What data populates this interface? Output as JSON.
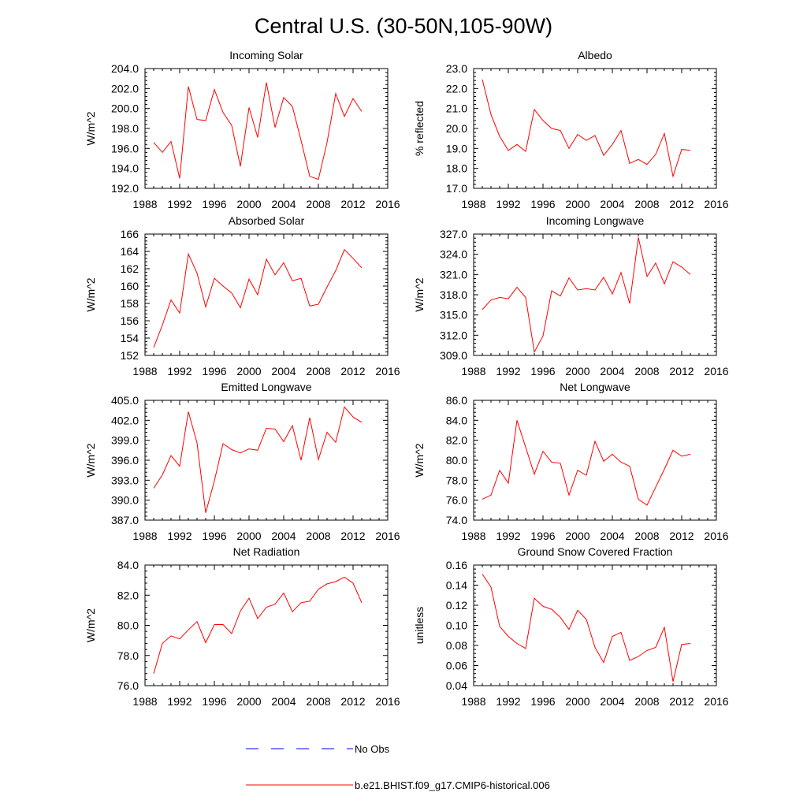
{
  "title": "Central U.S. (30-50N,105-90W)",
  "colors": {
    "model": "#ff0000",
    "obs": "#0000ff",
    "axis": "#000000"
  },
  "legend": {
    "obs_label": "No Obs",
    "model_label": "b.e21.BHIST.f09_g17.CMIP6-historical.006"
  },
  "chart_data": [
    {
      "type": "line",
      "title": "Incoming Solar",
      "ylabel": "W/m^2",
      "xlim": [
        1988,
        2016
      ],
      "xticks": [
        "1988",
        "1992",
        "1996",
        "2000",
        "2004",
        "2008",
        "2012",
        "2016"
      ],
      "ylim": [
        192,
        204
      ],
      "yticks": [
        "192.0",
        "194.0",
        "196.0",
        "198.0",
        "200.0",
        "202.0",
        "204.0"
      ],
      "x": [
        1989,
        1990,
        1991,
        1992,
        1993,
        1994,
        1995,
        1996,
        1997,
        1998,
        1999,
        2000,
        2001,
        2002,
        2003,
        2004,
        2005,
        2006,
        2007,
        2008,
        2009,
        2010,
        2011,
        2012,
        2013
      ],
      "series": [
        {
          "name": "b.e21.BHIST.f09_g17.CMIP6-historical.006",
          "values": [
            196.6,
            195.6,
            196.7,
            193.0,
            202.2,
            198.9,
            198.8,
            201.9,
            199.6,
            198.3,
            194.2,
            200.1,
            197.1,
            202.6,
            198.1,
            201.1,
            200.2,
            196.8,
            193.2,
            192.9,
            196.6,
            201.5,
            199.2,
            201.0,
            199.7
          ]
        }
      ]
    },
    {
      "type": "line",
      "title": "Albedo",
      "ylabel": "% reflected",
      "xlim": [
        1988,
        2016
      ],
      "xticks": [
        "1988",
        "1992",
        "1996",
        "2000",
        "2004",
        "2008",
        "2012",
        "2016"
      ],
      "ylim": [
        17,
        23
      ],
      "yticks": [
        "17.0",
        "18.0",
        "19.0",
        "20.0",
        "21.0",
        "22.0",
        "23.0"
      ],
      "x": [
        1989,
        1990,
        1991,
        1992,
        1993,
        1994,
        1995,
        1996,
        1997,
        1998,
        1999,
        2000,
        2001,
        2002,
        2003,
        2004,
        2005,
        2006,
        2007,
        2008,
        2009,
        2010,
        2011,
        2012,
        2013
      ],
      "series": [
        {
          "name": "b.e21.BHIST.f09_g17.CMIP6-historical.006",
          "values": [
            22.45,
            20.7,
            19.6,
            18.9,
            19.2,
            18.85,
            20.95,
            20.4,
            20.0,
            19.9,
            19.0,
            19.7,
            19.4,
            19.65,
            18.65,
            19.2,
            19.9,
            18.25,
            18.45,
            18.2,
            18.7,
            19.75,
            17.6,
            18.95,
            18.9
          ]
        }
      ]
    },
    {
      "type": "line",
      "title": "Absorbed Solar",
      "ylabel": "W/m^2",
      "xlim": [
        1988,
        2016
      ],
      "xticks": [
        "1988",
        "1992",
        "1996",
        "2000",
        "2004",
        "2008",
        "2012",
        "2016"
      ],
      "ylim": [
        152,
        166
      ],
      "yticks": [
        "152",
        "154",
        "156",
        "158",
        "160",
        "162",
        "164",
        "166"
      ],
      "x": [
        1989,
        1990,
        1991,
        1992,
        1993,
        1994,
        1995,
        1996,
        1997,
        1998,
        1999,
        2000,
        2001,
        2002,
        2003,
        2004,
        2005,
        2006,
        2007,
        2008,
        2009,
        2010,
        2011,
        2012,
        2013
      ],
      "series": [
        {
          "name": "b.e21.BHIST.f09_g17.CMIP6-historical.006",
          "values": [
            152.9,
            155.5,
            158.4,
            156.9,
            163.7,
            161.5,
            157.6,
            160.9,
            160.0,
            159.2,
            157.5,
            160.8,
            159.0,
            163.1,
            161.3,
            162.7,
            160.6,
            160.9,
            157.7,
            157.9,
            159.9,
            161.8,
            164.2,
            163.2,
            162.1
          ]
        }
      ]
    },
    {
      "type": "line",
      "title": "Incoming Longwave",
      "ylabel": "W/m^2",
      "xlim": [
        1988,
        2016
      ],
      "xticks": [
        "1988",
        "1992",
        "1996",
        "2000",
        "2004",
        "2008",
        "2012",
        "2016"
      ],
      "ylim": [
        309,
        327
      ],
      "yticks": [
        "309.0",
        "312.0",
        "315.0",
        "318.0",
        "321.0",
        "324.0",
        "327.0"
      ],
      "x": [
        1989,
        1990,
        1991,
        1992,
        1993,
        1994,
        1995,
        1996,
        1997,
        1998,
        1999,
        2000,
        2001,
        2002,
        2003,
        2004,
        2005,
        2006,
        2007,
        2008,
        2009,
        2010,
        2011,
        2012,
        2013
      ],
      "series": [
        {
          "name": "b.e21.BHIST.f09_g17.CMIP6-historical.006",
          "values": [
            315.8,
            317.2,
            317.6,
            317.4,
            319.1,
            317.6,
            309.5,
            311.9,
            318.6,
            317.8,
            320.5,
            318.7,
            318.9,
            318.7,
            320.6,
            318.1,
            321.3,
            316.7,
            326.5,
            320.7,
            322.7,
            319.6,
            322.9,
            322.1,
            321.0
          ]
        }
      ]
    },
    {
      "type": "line",
      "title": "Emitted Longwave",
      "ylabel": "W/m^2",
      "xlim": [
        1988,
        2016
      ],
      "xticks": [
        "1988",
        "1992",
        "1996",
        "2000",
        "2004",
        "2008",
        "2012",
        "2016"
      ],
      "ylim": [
        387,
        405
      ],
      "yticks": [
        "387.0",
        "390.0",
        "393.0",
        "396.0",
        "399.0",
        "402.0",
        "405.0"
      ],
      "x": [
        1989,
        1990,
        1991,
        1992,
        1993,
        1994,
        1995,
        1996,
        1997,
        1998,
        1999,
        2000,
        2001,
        2002,
        2003,
        2004,
        2005,
        2006,
        2007,
        2008,
        2009,
        2010,
        2011,
        2012,
        2013
      ],
      "series": [
        {
          "name": "b.e21.BHIST.f09_g17.CMIP6-historical.006",
          "values": [
            391.8,
            393.8,
            396.7,
            395.1,
            403.3,
            398.6,
            388.1,
            392.9,
            398.5,
            397.6,
            397.1,
            397.7,
            397.5,
            400.8,
            400.7,
            398.8,
            401.2,
            396.0,
            402.4,
            396.1,
            400.2,
            398.7,
            404.0,
            402.5,
            401.7
          ]
        }
      ]
    },
    {
      "type": "line",
      "title": "Net Longwave",
      "ylabel": "W/m^2",
      "xlim": [
        1988,
        2016
      ],
      "xticks": [
        "1988",
        "1992",
        "1996",
        "2000",
        "2004",
        "2008",
        "2012",
        "2016"
      ],
      "ylim": [
        74,
        86
      ],
      "yticks": [
        "74.0",
        "76.0",
        "78.0",
        "80.0",
        "82.0",
        "84.0",
        "86.0"
      ],
      "x": [
        1989,
        1990,
        1991,
        1992,
        1993,
        1994,
        1995,
        1996,
        1997,
        1998,
        1999,
        2000,
        2001,
        2002,
        2003,
        2004,
        2005,
        2006,
        2007,
        2008,
        2009,
        2010,
        2011,
        2012,
        2013
      ],
      "series": [
        {
          "name": "b.e21.BHIST.f09_g17.CMIP6-historical.006",
          "values": [
            76.1,
            76.5,
            79.0,
            77.7,
            84.0,
            81.3,
            78.6,
            80.9,
            79.8,
            79.7,
            76.5,
            79.0,
            78.5,
            81.9,
            79.9,
            80.6,
            79.8,
            79.4,
            76.1,
            75.5,
            77.3,
            79.1,
            81.0,
            80.4,
            80.6
          ]
        }
      ]
    },
    {
      "type": "line",
      "title": "Net Radiation",
      "ylabel": "W/m^2",
      "xlim": [
        1988,
        2016
      ],
      "xticks": [
        "1988",
        "1992",
        "1996",
        "2000",
        "2004",
        "2008",
        "2012",
        "2016"
      ],
      "ylim": [
        76,
        84
      ],
      "yticks": [
        "76.0",
        "78.0",
        "80.0",
        "82.0",
        "84.0"
      ],
      "x": [
        1989,
        1990,
        1991,
        1992,
        1993,
        1994,
        1995,
        1996,
        1997,
        1998,
        1999,
        2000,
        2001,
        2002,
        2003,
        2004,
        2005,
        2006,
        2007,
        2008,
        2009,
        2010,
        2011,
        2012,
        2013
      ],
      "series": [
        {
          "name": "b.e21.BHIST.f09_g17.CMIP6-historical.006",
          "values": [
            76.8,
            78.8,
            79.3,
            79.1,
            79.7,
            80.25,
            78.85,
            80.05,
            80.05,
            79.45,
            80.95,
            81.8,
            80.45,
            81.2,
            81.4,
            82.15,
            80.9,
            81.5,
            81.6,
            82.4,
            82.75,
            82.9,
            83.2,
            82.8,
            81.5
          ]
        }
      ]
    },
    {
      "type": "line",
      "title": "Ground Snow Covered Fraction",
      "ylabel": "unitless",
      "xlim": [
        1988,
        2016
      ],
      "xticks": [
        "1988",
        "1992",
        "1996",
        "2000",
        "2004",
        "2008",
        "2012",
        "2016"
      ],
      "ylim": [
        0.04,
        0.16
      ],
      "yticks": [
        "0.04",
        "0.06",
        "0.08",
        "0.10",
        "0.12",
        "0.14",
        "0.16"
      ],
      "x": [
        1989,
        1990,
        1991,
        1992,
        1993,
        1994,
        1995,
        1996,
        1997,
        1998,
        1999,
        2000,
        2001,
        2002,
        2003,
        2004,
        2005,
        2006,
        2007,
        2008,
        2009,
        2010,
        2011,
        2012,
        2013
      ],
      "series": [
        {
          "name": "b.e21.BHIST.f09_g17.CMIP6-historical.006",
          "values": [
            0.151,
            0.138,
            0.099,
            0.089,
            0.082,
            0.077,
            0.127,
            0.119,
            0.116,
            0.108,
            0.096,
            0.115,
            0.106,
            0.078,
            0.063,
            0.089,
            0.093,
            0.065,
            0.069,
            0.075,
            0.078,
            0.098,
            0.044,
            0.081,
            0.082
          ]
        }
      ]
    }
  ]
}
